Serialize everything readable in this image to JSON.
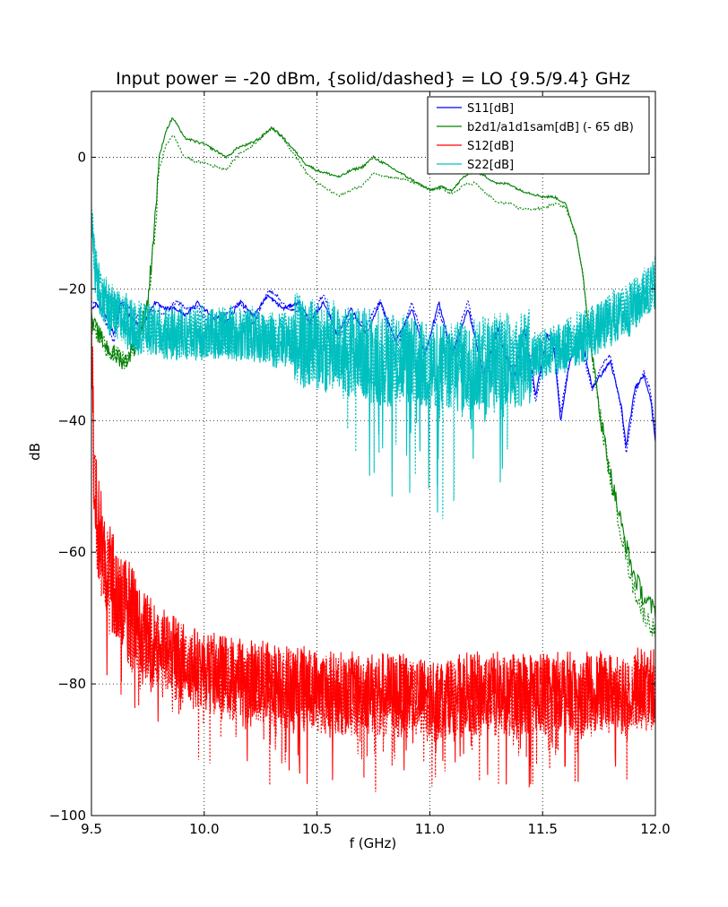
{
  "chart_data": {
    "type": "line",
    "title": "Input power = -20 dBm, {solid/dashed} = LO {9.5/9.4} GHz",
    "xlabel": "f (GHz)",
    "ylabel": "dB",
    "xlim": [
      9.5,
      12.0
    ],
    "ylim": [
      -100,
      10
    ],
    "xticks": [
      9.5,
      10.0,
      10.5,
      11.0,
      11.5,
      12.0
    ],
    "xtick_labels": [
      "9.5",
      "10.0",
      "10.5",
      "11.0",
      "11.5",
      "12.0"
    ],
    "yticks": [
      -100,
      -80,
      -60,
      -40,
      -20,
      0
    ],
    "ytick_labels": [
      "−100",
      "−80",
      "−60",
      "−40",
      "−20",
      "0"
    ],
    "grid": true,
    "legend_position": "upper-right",
    "series": [
      {
        "name": "S11[dB]",
        "color": "#0000ff",
        "x": [
          9.5,
          9.52,
          9.55,
          9.6,
          9.63,
          9.67,
          9.72,
          9.78,
          9.82,
          9.87,
          9.92,
          9.97,
          10.03,
          10.1,
          10.16,
          10.22,
          10.28,
          10.35,
          10.42,
          10.47,
          10.53,
          10.59,
          10.65,
          10.72,
          10.78,
          10.85,
          10.92,
          10.98,
          11.04,
          11.1,
          11.17,
          11.24,
          11.3,
          11.37,
          11.42,
          11.47,
          11.52,
          11.55,
          11.58,
          11.62,
          11.67,
          11.72,
          11.76,
          11.8,
          11.85,
          11.87,
          11.91,
          11.95,
          11.98,
          12.0
        ],
        "y": [
          -23,
          -22.5,
          -23,
          -27,
          -22,
          -24,
          -26,
          -22,
          -23,
          -23,
          -24,
          -22,
          -24,
          -25,
          -22,
          -24,
          -21,
          -23,
          -22,
          -25,
          -22,
          -27,
          -23,
          -27,
          -22,
          -28,
          -23,
          -30,
          -22,
          -30,
          -23,
          -33,
          -26,
          -34,
          -26,
          -36,
          -27,
          -29,
          -40,
          -31,
          -27,
          -35,
          -33,
          -31,
          -38,
          -44,
          -35,
          -33,
          -37,
          -43
        ]
      },
      {
        "name": "b2d1/a1d1sam[dB] (- 65 dB)",
        "color": "#008000",
        "x": [
          9.5,
          9.55,
          9.6,
          9.65,
          9.7,
          9.75,
          9.78,
          9.8,
          9.83,
          9.86,
          9.88,
          9.91,
          9.95,
          10.0,
          10.05,
          10.1,
          10.15,
          10.2,
          10.25,
          10.3,
          10.35,
          10.4,
          10.45,
          10.5,
          10.55,
          10.6,
          10.65,
          10.7,
          10.75,
          10.8,
          10.85,
          10.9,
          10.95,
          11.0,
          11.05,
          11.1,
          11.15,
          11.2,
          11.25,
          11.3,
          11.35,
          11.4,
          11.45,
          11.5,
          11.55,
          11.6,
          11.65,
          11.68,
          11.7,
          11.73,
          11.76,
          11.8,
          11.85,
          11.9,
          11.95,
          12.0
        ],
        "y": [
          -25,
          -28,
          -30,
          -31,
          -28,
          -22,
          -10,
          0,
          4,
          6,
          5,
          3,
          2.5,
          2,
          1,
          0,
          1.5,
          2,
          3,
          4.5,
          3,
          1,
          -1,
          -2,
          -2.5,
          -3,
          -2,
          -1.5,
          0,
          -1,
          -2,
          -3,
          -4,
          -5,
          -4.5,
          -5,
          -3,
          -2,
          -3,
          -4,
          -4,
          -5,
          -5.5,
          -6,
          -6,
          -7,
          -12,
          -18,
          -25,
          -33,
          -40,
          -48,
          -56,
          -63,
          -67,
          -69
        ]
      },
      {
        "name": "S12[dB]",
        "color": "#ff0000",
        "x": [
          9.5,
          9.51,
          9.53,
          9.56,
          9.6,
          9.65,
          9.7,
          9.8,
          9.9,
          10.0,
          10.2,
          10.4,
          10.6,
          10.8,
          11.0,
          11.2,
          11.4,
          11.6,
          11.8,
          12.0
        ],
        "y": [
          -20,
          -45,
          -56,
          -61,
          -65,
          -68,
          -71,
          -74,
          -76,
          -78,
          -79,
          -80,
          -81,
          -81,
          -82,
          -81,
          -81,
          -81,
          -81,
          -80
        ]
      },
      {
        "name": "S22[dB]",
        "color": "#00bfbf",
        "x": [
          9.5,
          9.52,
          9.55,
          9.6,
          9.7,
          9.8,
          9.9,
          10.0,
          10.1,
          10.2,
          10.3,
          10.4,
          10.5,
          10.6,
          10.7,
          10.8,
          10.9,
          11.0,
          11.1,
          11.2,
          11.3,
          11.4,
          11.5,
          11.6,
          11.65,
          11.7,
          11.75,
          11.8,
          11.85,
          11.9,
          11.95,
          12.0
        ],
        "y": [
          -10,
          -18,
          -22,
          -24,
          -26,
          -27,
          -27,
          -27,
          -27,
          -27,
          -28,
          -28,
          -29,
          -29,
          -30,
          -31,
          -31,
          -32,
          -32,
          -32,
          -31,
          -31,
          -30,
          -29,
          -28,
          -27,
          -26,
          -25,
          -24,
          -23,
          -21,
          -19
        ]
      }
    ]
  }
}
